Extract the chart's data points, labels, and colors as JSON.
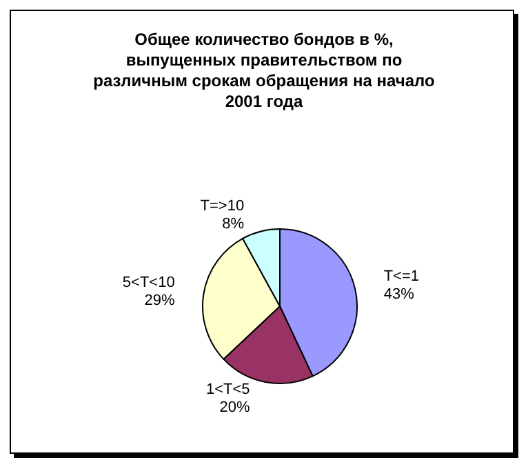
{
  "chart_data": {
    "type": "pie",
    "title": "Общее количество бондов в %,\nвыпущенных правительством по\nразличным срокам обращения на начало\n2001 года",
    "categories": [
      "T<=1",
      "1<T<5",
      "5<T<10",
      "T=>10"
    ],
    "values": [
      43,
      20,
      29,
      8
    ],
    "value_labels": [
      "43%",
      "20%",
      "29%",
      "8%"
    ],
    "colors": [
      "#9999ff",
      "#993366",
      "#ffffcc",
      "#ccffff"
    ],
    "legend": false
  }
}
